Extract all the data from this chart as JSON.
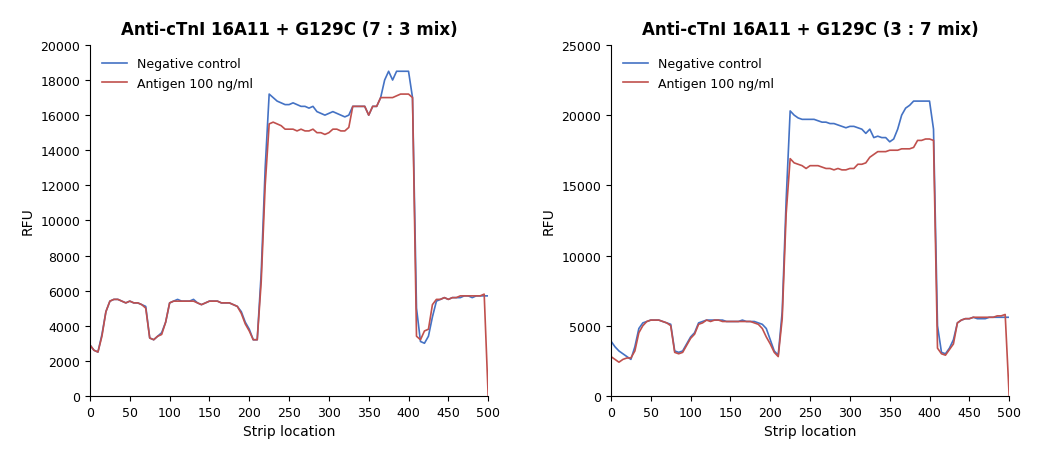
{
  "plot1": {
    "title": "Anti-cTnI 16A11 + G129C (7 : 3 mix)",
    "xlabel": "Strip location",
    "ylabel": "RFU",
    "ylim": [
      0,
      20000
    ],
    "yticks": [
      0,
      2000,
      4000,
      6000,
      8000,
      10000,
      12000,
      14000,
      16000,
      18000,
      20000
    ],
    "xlim": [
      0,
      500
    ],
    "xticks": [
      0,
      50,
      100,
      150,
      200,
      250,
      300,
      350,
      400,
      450,
      500
    ],
    "neg_ctrl_color": "#4472C4",
    "antigen_color": "#C0504D",
    "legend_labels": [
      "Negative control",
      "Antigen 100 ng/ml"
    ],
    "neg_ctrl_x": [
      0,
      5,
      10,
      15,
      20,
      25,
      30,
      35,
      40,
      45,
      50,
      55,
      60,
      65,
      70,
      75,
      80,
      85,
      90,
      95,
      100,
      105,
      110,
      115,
      120,
      125,
      130,
      135,
      140,
      145,
      150,
      155,
      160,
      165,
      170,
      175,
      180,
      185,
      190,
      195,
      200,
      205,
      210,
      215,
      220,
      225,
      230,
      235,
      240,
      245,
      250,
      255,
      260,
      265,
      270,
      275,
      280,
      285,
      290,
      295,
      300,
      305,
      310,
      315,
      320,
      325,
      330,
      335,
      340,
      345,
      350,
      355,
      360,
      365,
      370,
      375,
      380,
      385,
      390,
      395,
      400,
      405,
      410,
      415,
      420,
      425,
      430,
      435,
      440,
      445,
      450,
      455,
      460,
      465,
      470,
      475,
      480,
      485,
      490,
      495,
      500
    ],
    "neg_ctrl_y": [
      2900,
      2600,
      2500,
      3500,
      4800,
      5400,
      5500,
      5500,
      5400,
      5300,
      5400,
      5300,
      5300,
      5200,
      5100,
      3300,
      3200,
      3400,
      3600,
      4200,
      5300,
      5400,
      5500,
      5400,
      5400,
      5400,
      5500,
      5300,
      5200,
      5300,
      5400,
      5400,
      5400,
      5300,
      5300,
      5300,
      5200,
      5100,
      4800,
      4200,
      3800,
      3200,
      3200,
      7000,
      13000,
      17200,
      17000,
      16800,
      16700,
      16600,
      16600,
      16700,
      16600,
      16500,
      16500,
      16400,
      16500,
      16200,
      16100,
      16000,
      16100,
      16200,
      16100,
      16000,
      15900,
      16000,
      16500,
      16500,
      16500,
      16500,
      16000,
      16500,
      16500,
      17000,
      18000,
      18500,
      18000,
      18500,
      18500,
      18500,
      18500,
      17000,
      5000,
      3100,
      3000,
      3400,
      4500,
      5400,
      5500,
      5600,
      5500,
      5600,
      5600,
      5600,
      5700,
      5700,
      5600,
      5700,
      5700,
      5700,
      5700
    ],
    "antigen_x": [
      0,
      5,
      10,
      15,
      20,
      25,
      30,
      35,
      40,
      45,
      50,
      55,
      60,
      65,
      70,
      75,
      80,
      85,
      90,
      95,
      100,
      105,
      110,
      115,
      120,
      125,
      130,
      135,
      140,
      145,
      150,
      155,
      160,
      165,
      170,
      175,
      180,
      185,
      190,
      195,
      200,
      205,
      210,
      215,
      220,
      225,
      230,
      235,
      240,
      245,
      250,
      255,
      260,
      265,
      270,
      275,
      280,
      285,
      290,
      295,
      300,
      305,
      310,
      315,
      320,
      325,
      330,
      335,
      340,
      345,
      350,
      355,
      360,
      365,
      370,
      375,
      380,
      385,
      390,
      395,
      400,
      405,
      410,
      415,
      420,
      425,
      430,
      435,
      440,
      445,
      450,
      455,
      460,
      465,
      470,
      475,
      480,
      485,
      490,
      495,
      500
    ],
    "antigen_y": [
      2900,
      2600,
      2500,
      3400,
      4800,
      5400,
      5500,
      5500,
      5400,
      5300,
      5400,
      5300,
      5300,
      5200,
      5000,
      3300,
      3200,
      3400,
      3500,
      4200,
      5300,
      5400,
      5400,
      5400,
      5400,
      5400,
      5400,
      5300,
      5200,
      5300,
      5400,
      5400,
      5400,
      5300,
      5300,
      5300,
      5200,
      5100,
      4700,
      4100,
      3700,
      3200,
      3200,
      6500,
      12000,
      15500,
      15600,
      15500,
      15400,
      15200,
      15200,
      15200,
      15100,
      15200,
      15100,
      15100,
      15200,
      15000,
      15000,
      14900,
      15000,
      15200,
      15200,
      15100,
      15100,
      15300,
      16500,
      16500,
      16500,
      16500,
      16000,
      16500,
      16500,
      17000,
      17000,
      17000,
      17000,
      17100,
      17200,
      17200,
      17200,
      17000,
      3400,
      3200,
      3700,
      3800,
      5200,
      5500,
      5500,
      5600,
      5500,
      5600,
      5600,
      5700,
      5700,
      5700,
      5700,
      5700,
      5700,
      5800,
      0
    ]
  },
  "plot2": {
    "title": "Anti-cTnI 16A11 + G129C (3 : 7 mix)",
    "xlabel": "Strip location",
    "ylabel": "RFU",
    "ylim": [
      0,
      25000
    ],
    "yticks": [
      0,
      5000,
      10000,
      15000,
      20000,
      25000
    ],
    "xlim": [
      0,
      500
    ],
    "xticks": [
      0,
      50,
      100,
      150,
      200,
      250,
      300,
      350,
      400,
      450,
      500
    ],
    "neg_ctrl_color": "#4472C4",
    "antigen_color": "#C0504D",
    "legend_labels": [
      "Negative control",
      "Antigen 100 ng/ml"
    ],
    "neg_ctrl_x": [
      0,
      5,
      10,
      15,
      20,
      25,
      30,
      35,
      40,
      45,
      50,
      55,
      60,
      65,
      70,
      75,
      80,
      85,
      90,
      95,
      100,
      105,
      110,
      115,
      120,
      125,
      130,
      135,
      140,
      145,
      150,
      155,
      160,
      165,
      170,
      175,
      180,
      185,
      190,
      195,
      200,
      205,
      210,
      215,
      220,
      225,
      230,
      235,
      240,
      245,
      250,
      255,
      260,
      265,
      270,
      275,
      280,
      285,
      290,
      295,
      300,
      305,
      310,
      315,
      320,
      325,
      330,
      335,
      340,
      345,
      350,
      355,
      360,
      365,
      370,
      375,
      380,
      385,
      390,
      395,
      400,
      405,
      410,
      415,
      420,
      425,
      430,
      435,
      440,
      445,
      450,
      455,
      460,
      465,
      470,
      475,
      480,
      485,
      490,
      495,
      500
    ],
    "neg_ctrl_y": [
      3900,
      3500,
      3200,
      3000,
      2800,
      2600,
      3500,
      4800,
      5200,
      5300,
      5400,
      5400,
      5400,
      5300,
      5200,
      5100,
      3200,
      3100,
      3200,
      3700,
      4200,
      4500,
      5200,
      5300,
      5400,
      5400,
      5400,
      5400,
      5400,
      5300,
      5300,
      5300,
      5300,
      5400,
      5300,
      5300,
      5300,
      5200,
      5100,
      4800,
      4000,
      3200,
      2900,
      6000,
      14000,
      20300,
      20000,
      19800,
      19700,
      19700,
      19700,
      19700,
      19600,
      19500,
      19500,
      19400,
      19400,
      19300,
      19200,
      19100,
      19200,
      19200,
      19100,
      19000,
      18700,
      19000,
      18400,
      18500,
      18400,
      18400,
      18100,
      18300,
      19000,
      20000,
      20500,
      20700,
      21000,
      21000,
      21000,
      21000,
      21000,
      19000,
      5000,
      3100,
      3000,
      3400,
      4000,
      5200,
      5400,
      5500,
      5500,
      5600,
      5500,
      5500,
      5500,
      5600,
      5600,
      5600,
      5600,
      5600,
      5600
    ],
    "antigen_x": [
      0,
      5,
      10,
      15,
      20,
      25,
      30,
      35,
      40,
      45,
      50,
      55,
      60,
      65,
      70,
      75,
      80,
      85,
      90,
      95,
      100,
      105,
      110,
      115,
      120,
      125,
      130,
      135,
      140,
      145,
      150,
      155,
      160,
      165,
      170,
      175,
      180,
      185,
      190,
      195,
      200,
      205,
      210,
      215,
      220,
      225,
      230,
      235,
      240,
      245,
      250,
      255,
      260,
      265,
      270,
      275,
      280,
      285,
      290,
      295,
      300,
      305,
      310,
      315,
      320,
      325,
      330,
      335,
      340,
      345,
      350,
      355,
      360,
      365,
      370,
      375,
      380,
      385,
      390,
      395,
      400,
      405,
      410,
      415,
      420,
      425,
      430,
      435,
      440,
      445,
      450,
      455,
      460,
      465,
      470,
      475,
      480,
      485,
      490,
      495,
      500
    ],
    "antigen_y": [
      2800,
      2600,
      2400,
      2600,
      2700,
      2700,
      3200,
      4500,
      5000,
      5300,
      5400,
      5400,
      5400,
      5300,
      5200,
      5000,
      3100,
      3000,
      3100,
      3600,
      4100,
      4400,
      5100,
      5200,
      5400,
      5300,
      5400,
      5400,
      5300,
      5300,
      5300,
      5300,
      5300,
      5300,
      5300,
      5300,
      5200,
      5100,
      4800,
      4200,
      3700,
      3100,
      2800,
      5500,
      13000,
      16900,
      16600,
      16500,
      16400,
      16200,
      16400,
      16400,
      16400,
      16300,
      16200,
      16200,
      16100,
      16200,
      16100,
      16100,
      16200,
      16200,
      16500,
      16500,
      16600,
      17000,
      17200,
      17400,
      17400,
      17400,
      17500,
      17500,
      17500,
      17600,
      17600,
      17600,
      17700,
      18200,
      18200,
      18300,
      18300,
      18200,
      3400,
      3000,
      2900,
      3300,
      3700,
      5200,
      5400,
      5500,
      5500,
      5600,
      5600,
      5600,
      5600,
      5600,
      5600,
      5700,
      5700,
      5800,
      0
    ]
  },
  "background_color": "#ffffff",
  "fig_title_fontsize": 12,
  "axis_label_fontsize": 10,
  "tick_fontsize": 9,
  "legend_fontsize": 9,
  "line_width": 1.2
}
